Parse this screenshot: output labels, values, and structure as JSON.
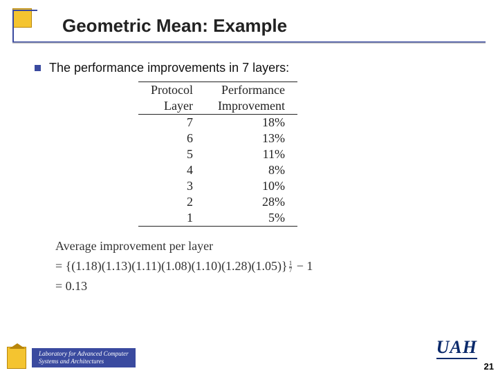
{
  "slide": {
    "title": "Geometric Mean: Example",
    "bullet_text": "The performance improvements in 7 layers:",
    "accent_color": "#3a4a9f",
    "box_color": "#f4c430",
    "background_color": "#ffffff"
  },
  "table": {
    "header_row1": {
      "col1": "Protocol",
      "col2": "Performance"
    },
    "header_row2": {
      "col1": "Layer",
      "col2": "Improvement"
    },
    "rows": [
      {
        "layer": "7",
        "improvement": "18%"
      },
      {
        "layer": "6",
        "improvement": "13%"
      },
      {
        "layer": "5",
        "improvement": "11%"
      },
      {
        "layer": "4",
        "improvement": "8%"
      },
      {
        "layer": "3",
        "improvement": "10%"
      },
      {
        "layer": "2",
        "improvement": "28%"
      },
      {
        "layer": "1",
        "improvement": "5%"
      }
    ],
    "font_family": "Times New Roman",
    "font_size_pt": 14,
    "border_color": "#222222"
  },
  "formula": {
    "line1": "Average improvement per layer",
    "line2_prefix": "= {(1.18)(1.13)(1.11)(1.08)(1.10)(1.28)(1.05)}",
    "exp_num": "1",
    "exp_den": "7",
    "line2_suffix": " − 1",
    "line3": "= 0.13",
    "font_family": "Times New Roman",
    "font_size_pt": 14,
    "text_color": "#333333"
  },
  "footer": {
    "lab_line1": "Laboratory for Advanced Computer",
    "lab_line2": "Systems and Architectures",
    "logo_text": "UAH",
    "page_number": "21",
    "badge_bg": "#3a4a9f",
    "badge_text_color": "#ffffff",
    "logo_color": "#0a2a6b"
  }
}
